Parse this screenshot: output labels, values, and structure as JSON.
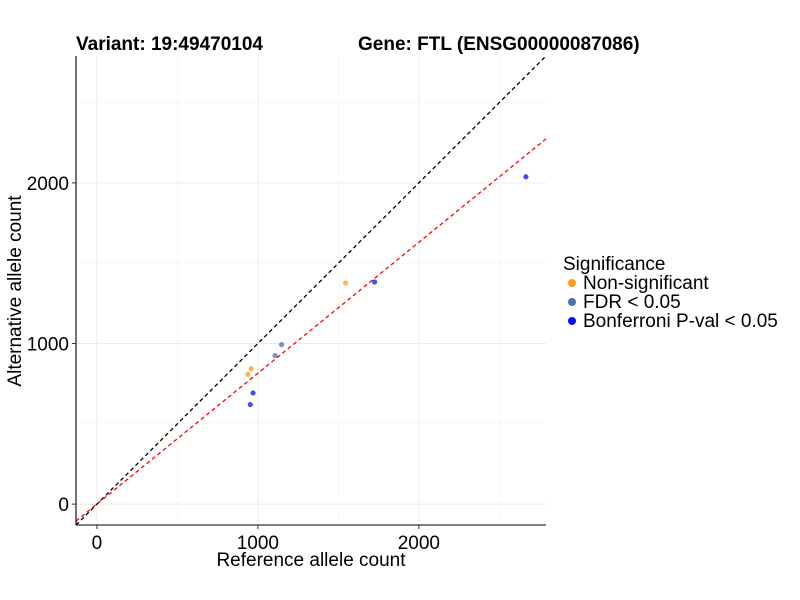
{
  "chart_data": {
    "type": "scatter",
    "title_left": "Variant: 19:49470104",
    "title_right": "Gene: FTL (ENSG00000087086)",
    "xlabel": "Reference allele count",
    "ylabel": "Alternative allele count",
    "xlim": [
      -130,
      2790
    ],
    "ylim": [
      -130,
      2790
    ],
    "xticks": [
      0,
      1000,
      2000
    ],
    "yticks": [
      0,
      1000,
      2000
    ],
    "xtick_labels": [
      "0",
      "1000",
      "2000"
    ],
    "ytick_labels": [
      "0",
      "1000",
      "2000"
    ],
    "reference_lines": [
      {
        "name": "equal-count",
        "slope": 1.0,
        "intercept": 0,
        "color": "#000000",
        "dash": "dashed"
      },
      {
        "name": "fitted-ratio",
        "slope": 0.815,
        "intercept": 0,
        "color": "#ff0000",
        "dash": "dashed"
      }
    ],
    "legend": {
      "title": "Significance",
      "position": "right",
      "entries": [
        {
          "label": "Non-significant",
          "color": "#ff9a1a"
        },
        {
          "label": "FDR < 0.05",
          "color": "#4a72b0"
        },
        {
          "label": "Bonferroni P-val < 0.05",
          "color": "#0a10f5"
        }
      ]
    },
    "series": [
      {
        "name": "Non-significant",
        "color": "#ff9a1a",
        "points": [
          [
            938,
            808
          ],
          [
            958,
            843
          ],
          [
            1545,
            1377
          ]
        ]
      },
      {
        "name": "FDR < 0.05",
        "color": "#4a72b0",
        "points": [
          [
            1107,
            925
          ],
          [
            1147,
            993
          ]
        ]
      },
      {
        "name": "Bonferroni P-val < 0.05",
        "color": "#0a10f5",
        "points": [
          [
            953,
            620
          ],
          [
            970,
            692
          ],
          [
            1725,
            1383
          ],
          [
            2665,
            2038
          ]
        ]
      }
    ]
  }
}
